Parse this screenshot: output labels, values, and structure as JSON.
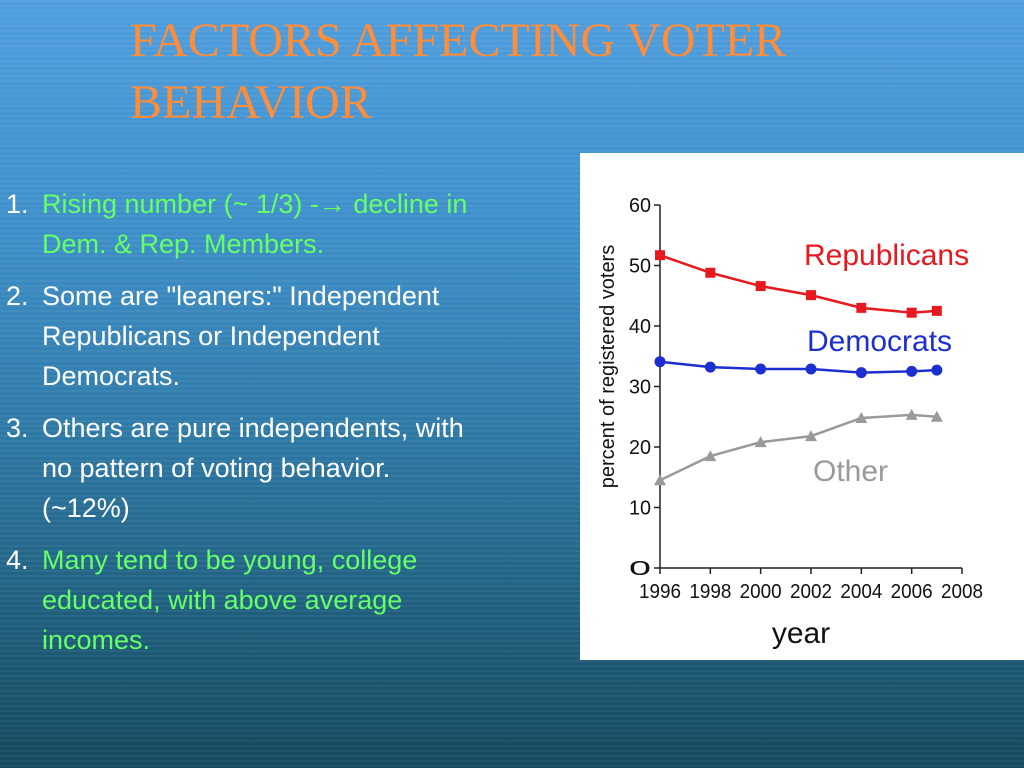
{
  "slide": {
    "title": "FACTORS AFFECTING VOTER BEHAVIOR",
    "colors": {
      "title": "#ff8d3a",
      "white_text": "#ffffff",
      "green_text": "#66ff66"
    },
    "bullets": [
      {
        "num": "1.",
        "text": "Rising number (~ 1/3) -→ decline in\nDem. & Rep. Members.",
        "color": "#66ff66"
      },
      {
        "num": "2.",
        "text": "Some are \"leaners:\"  Independent\nRepublicans or Independent\nDemocrats.",
        "color": "#ffffff"
      },
      {
        "num": "3.",
        "text": "Others are pure independents, with\nno pattern of voting behavior.\n(~12%)",
        "color": "#ffffff"
      },
      {
        "num": "4.",
        "text": "Many tend to be young, college\neducated, with above average\nincomes.",
        "color": "#66ff66"
      }
    ]
  },
  "chart_data": {
    "type": "line",
    "title": "",
    "xlabel": "year",
    "ylabel": "percent of registered voters",
    "x": [
      1996,
      1998,
      2000,
      2002,
      2004,
      2006,
      2007
    ],
    "xticks": [
      1996,
      1998,
      2000,
      2002,
      2004,
      2006,
      2008
    ],
    "xlim": [
      1996,
      2008
    ],
    "ylim": [
      0,
      60
    ],
    "yticks": [
      0,
      10,
      20,
      30,
      40,
      50,
      60
    ],
    "grid": false,
    "legend": "inline labels",
    "series": [
      {
        "name": "Republicans",
        "label": "Republicans",
        "color": "#e8191e",
        "marker": "square",
        "values": [
          51.7,
          48.8,
          46.6,
          45.1,
          43.0,
          42.2,
          42.5
        ]
      },
      {
        "name": "Democrats",
        "label": "Democrats",
        "color": "#1c2fd1",
        "marker": "circle",
        "values": [
          34.1,
          33.2,
          32.9,
          32.9,
          32.3,
          32.5,
          32.7
        ]
      },
      {
        "name": "Other",
        "label": "Other",
        "color": "#9a9a9a",
        "marker": "triangle",
        "values": [
          14.5,
          18.5,
          20.8,
          21.8,
          24.8,
          25.3,
          25.0
        ]
      }
    ]
  }
}
